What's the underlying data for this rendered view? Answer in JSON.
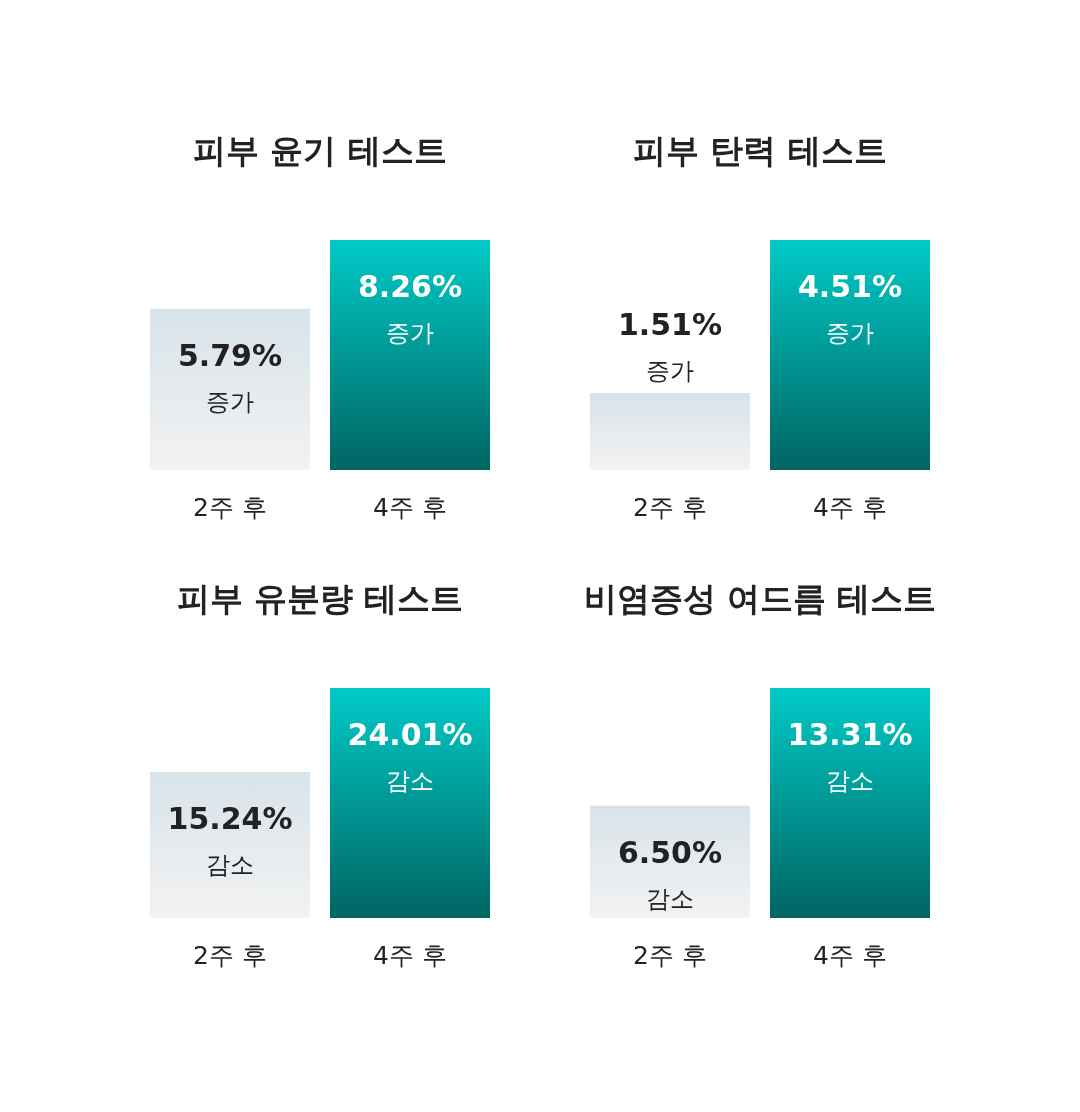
{
  "chart_data": [
    {
      "type": "bar",
      "title": "피부 윤기 테스트",
      "categories": [
        "2주 후",
        "4주 후"
      ],
      "values": [
        5.79,
        8.26
      ],
      "colors": [
        "#d8e3ea",
        "#00cac6"
      ],
      "value_labels": [
        "5.79%\n증가",
        "8.26%\n증가"
      ]
    },
    {
      "type": "bar",
      "title": "피부 탄력 테스트",
      "categories": [
        "2주 후",
        "4주 후"
      ],
      "values": [
        1.51,
        4.51
      ],
      "colors": [
        "#d8e3ea",
        "#00cac6"
      ],
      "value_labels": [
        "1.51%\n증가",
        "4.51%\n증가"
      ]
    },
    {
      "type": "bar",
      "title": "피부 유분량 테스트",
      "categories": [
        "2주 후",
        "4주 후"
      ],
      "values": [
        15.24,
        24.01
      ],
      "colors": [
        "#d8e3ea",
        "#00cac6"
      ],
      "value_labels": [
        "15.24%\n감소",
        "24.01%\n감소"
      ]
    },
    {
      "type": "bar",
      "title": "비염증성 여드름 테스트",
      "categories": [
        "2주 후",
        "4주 후"
      ],
      "values": [
        6.5,
        13.31
      ],
      "colors": [
        "#d8e3ea",
        "#00cac6"
      ],
      "value_labels": [
        "6.50%\n감소",
        "13.31%\n감소"
      ]
    }
  ]
}
